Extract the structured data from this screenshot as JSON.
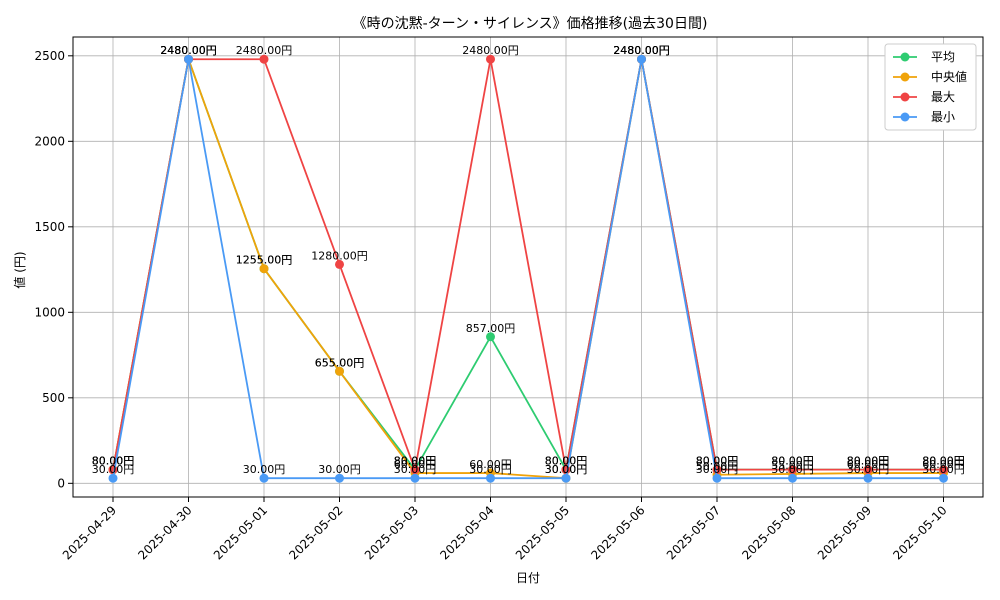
{
  "chart_data": {
    "type": "line",
    "title": "《時の沈黙-ターン・サイレンス》価格推移(過去30日間)",
    "xlabel": "日付",
    "ylabel": "値 (円)",
    "ylim": [
      -80,
      2610
    ],
    "yticks": [
      0,
      500,
      1000,
      1500,
      2000,
      2500
    ],
    "grid": true,
    "legend_position": "top-right",
    "value_suffix": "円",
    "categories": [
      "2025-04-29",
      "2025-04-30",
      "2025-05-01",
      "2025-05-02",
      "2025-05-03",
      "2025-05-04",
      "2025-05-05",
      "2025-05-06",
      "2025-05-07",
      "2025-05-08",
      "2025-05-09",
      "2025-05-10"
    ],
    "series": [
      {
        "name": "平均",
        "color": "#2ecc71",
        "values": [
          80,
          2480,
          1255,
          655,
          80,
          857,
          80,
          2480,
          80,
          80,
          80,
          80
        ]
      },
      {
        "name": "中央値",
        "color": "#f0a30a",
        "values": [
          80,
          2480,
          1255,
          655,
          60,
          60,
          30,
          2480,
          50,
          55,
          60,
          60
        ]
      },
      {
        "name": "最大",
        "color": "#ef4444",
        "values": [
          80,
          2480,
          2480,
          1280,
          80,
          2480,
          80,
          2480,
          80,
          80,
          80,
          80
        ]
      },
      {
        "name": "最小",
        "color": "#4a9af5",
        "values": [
          30,
          2480,
          30,
          30,
          30,
          30,
          30,
          2480,
          30,
          30,
          30,
          30
        ]
      }
    ]
  }
}
